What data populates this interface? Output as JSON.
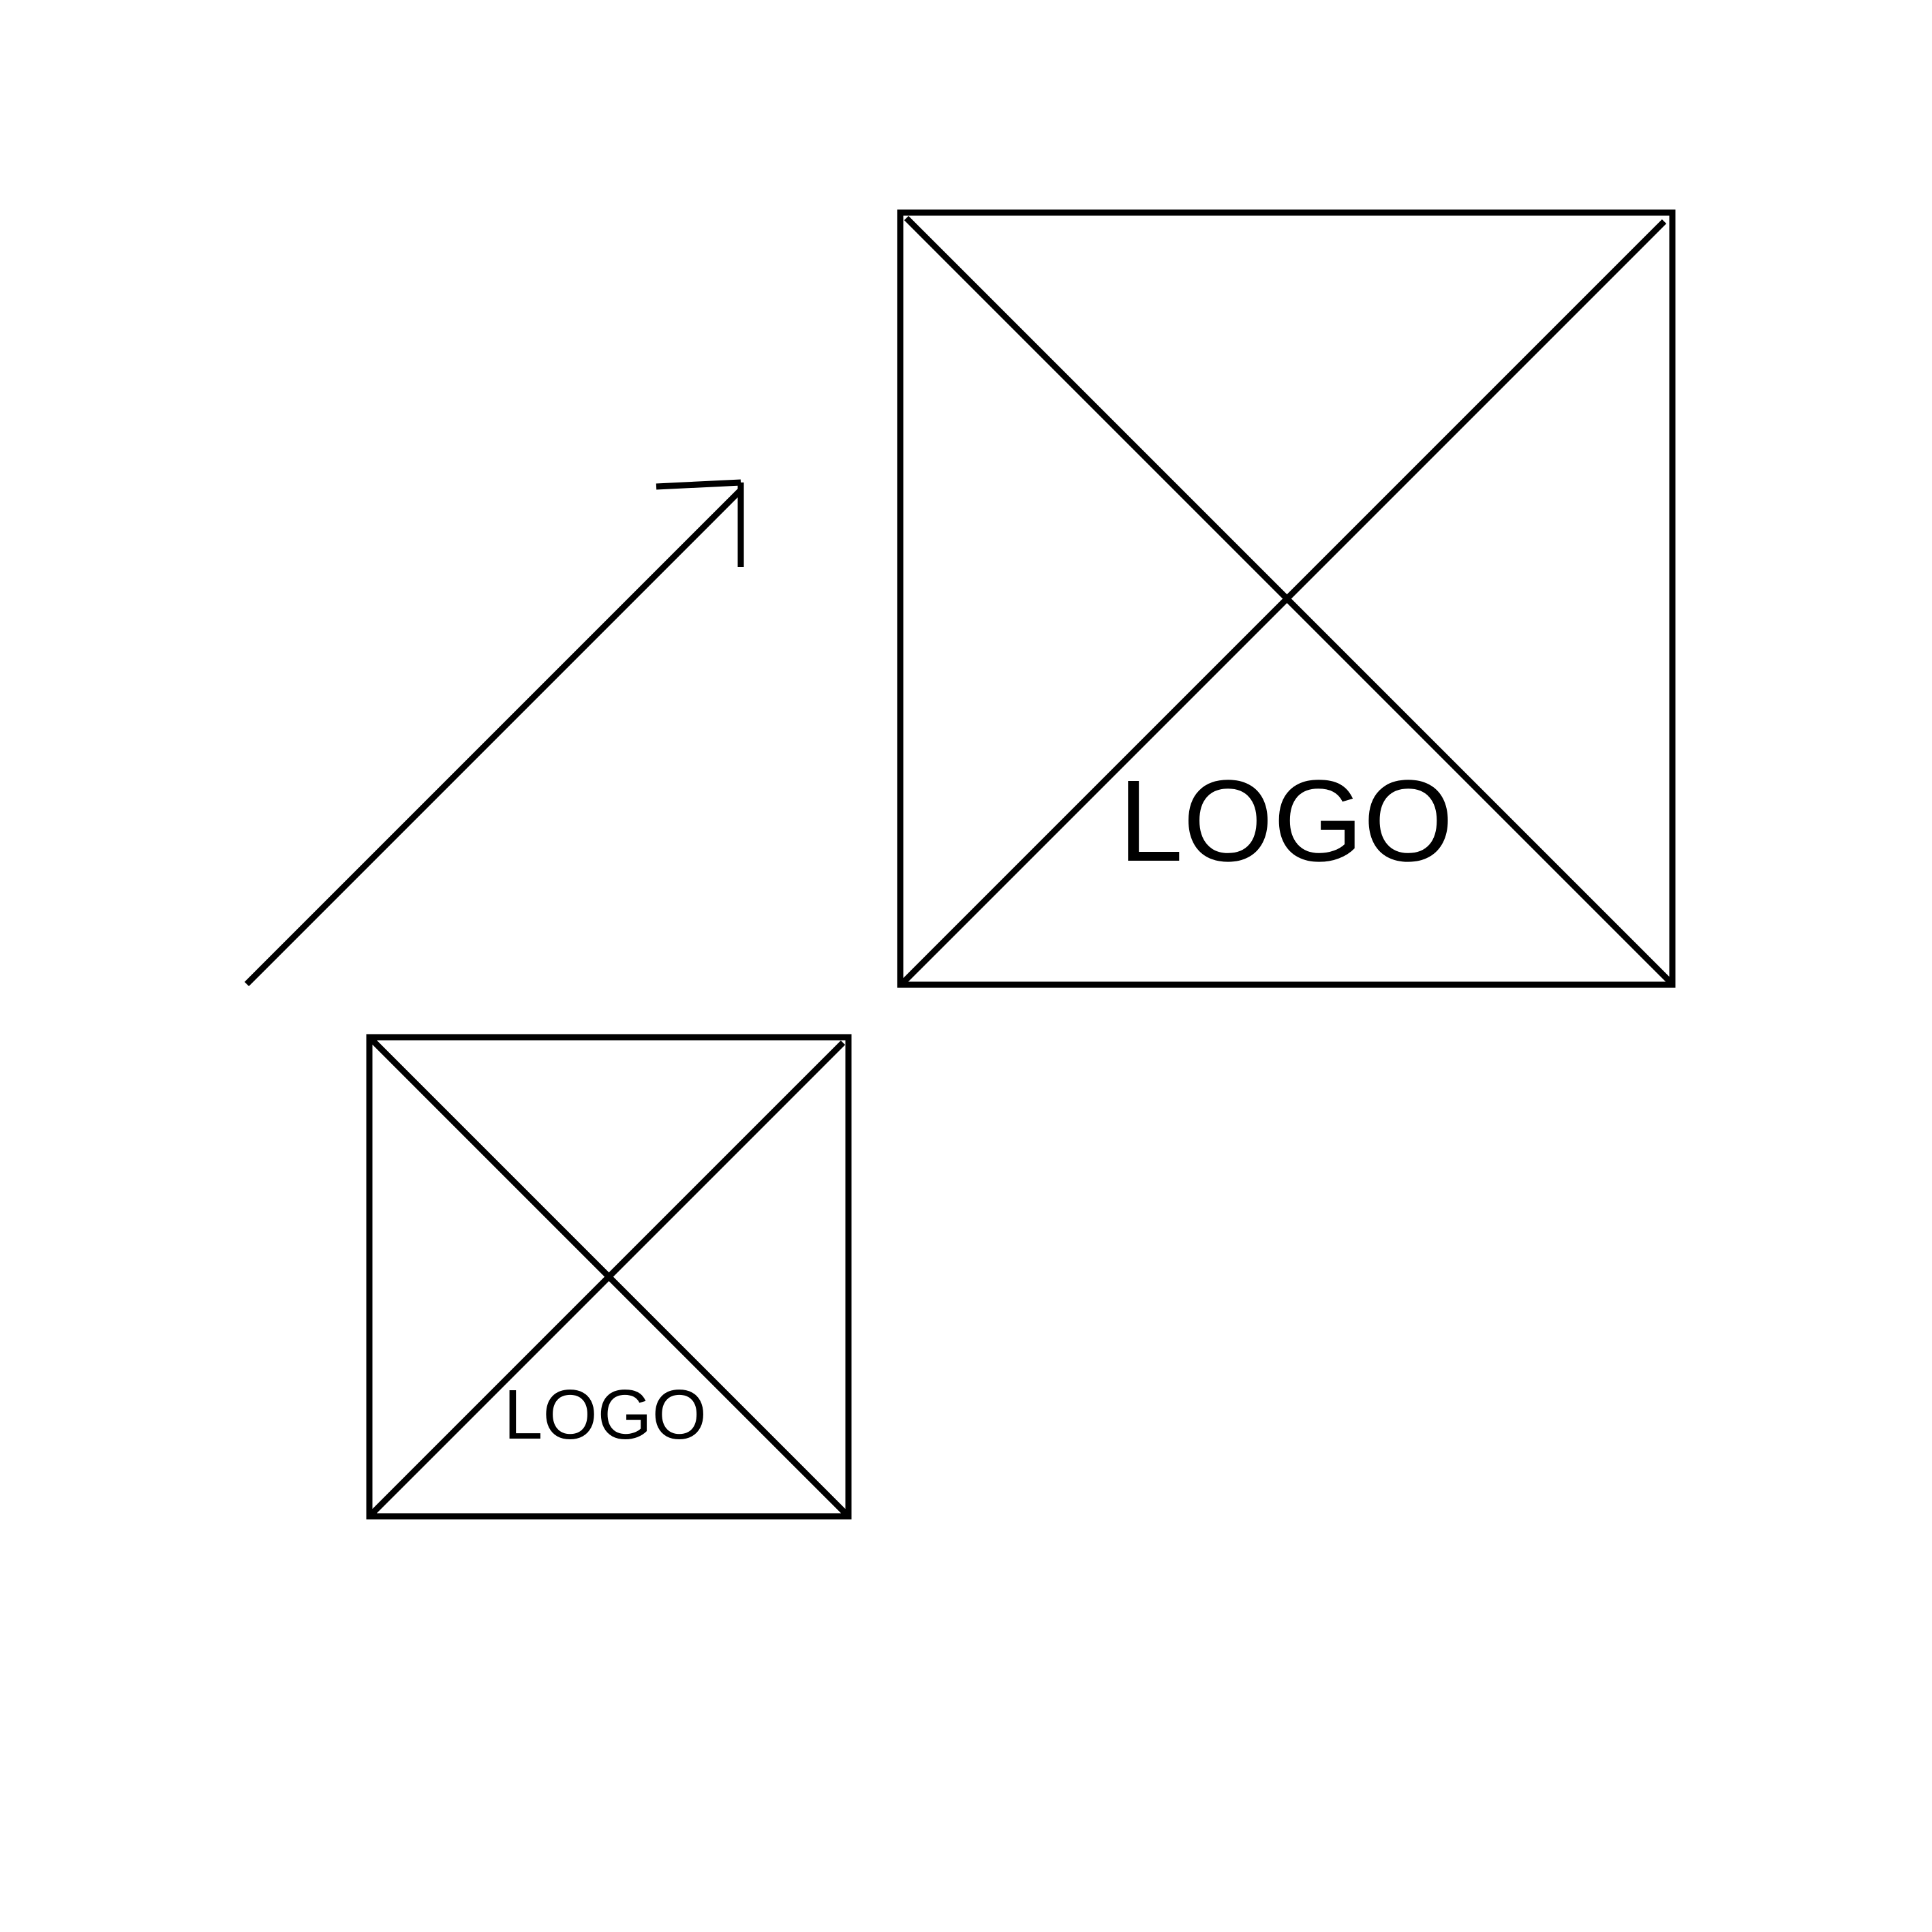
{
  "colors": {
    "background": "#ffffff",
    "stroke": "#000000"
  },
  "large_placeholder": {
    "label": "LOGO",
    "icon": "image-placeholder-icon"
  },
  "small_placeholder": {
    "label": "LOGO",
    "icon": "image-placeholder-icon"
  },
  "arrow": {
    "icon": "arrow-up-right-icon"
  }
}
